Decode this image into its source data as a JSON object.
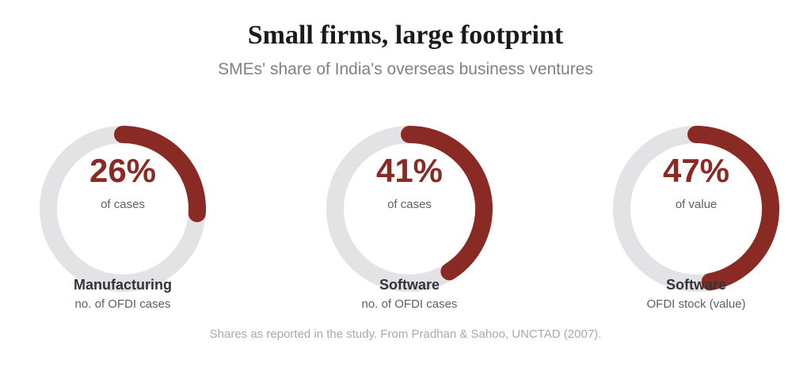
{
  "chart_data": {
    "type": "pie",
    "variant": "donut-progress",
    "title": "Small firms, large footprint",
    "subtitle": "SMEs' share of India's overseas business ventures",
    "items": [
      {
        "value": 26,
        "value_label": "26%",
        "unit": "of cases",
        "category": "Manufacturing",
        "measure": "no. of OFDI cases"
      },
      {
        "value": 41,
        "value_label": "41%",
        "unit": "of cases",
        "category": "Software",
        "measure": "no. of OFDI cases"
      },
      {
        "value": 47,
        "value_label": "47%",
        "unit": "of value",
        "category": "Software",
        "measure": "OFDI stock (value)"
      }
    ],
    "colors": {
      "fill": "#8a2a24",
      "track": "#e3e3e6"
    },
    "footnote": "Shares as reported in the study. From Pradhan & Sahoo, UNCTAD (2007)."
  }
}
